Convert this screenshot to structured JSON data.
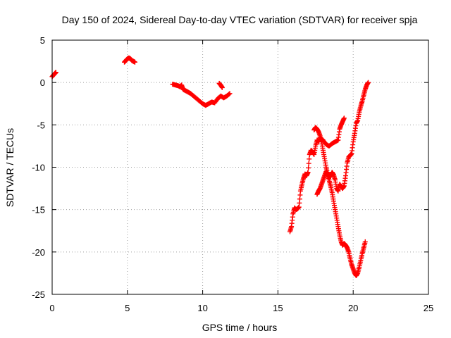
{
  "chart_data": {
    "type": "scatter",
    "title": "Day 150 of 2024, Sidereal Day-to-day VTEC variation (SDTVAR) for receiver spja",
    "xlabel": "GPS time / hours",
    "ylabel": "SDTVAR / TECUs",
    "xlim": [
      0,
      25
    ],
    "ylim": [
      -25,
      5
    ],
    "xticks": [
      "0",
      "5",
      "10",
      "15",
      "20",
      "25"
    ],
    "yticks": [
      "-25",
      "-20",
      "-15",
      "-10",
      "-5",
      "0",
      "5"
    ],
    "grid": true,
    "marker": "plus",
    "color": "#ff0000",
    "series": [
      {
        "segments": [
          [
            [
              0.0,
              0.7
            ],
            [
              0.1,
              0.9
            ],
            [
              0.2,
              1.1
            ],
            [
              0.25,
              1.2
            ]
          ],
          [
            [
              4.8,
              2.4
            ],
            [
              4.9,
              2.6
            ],
            [
              5.0,
              2.8
            ],
            [
              5.1,
              2.9
            ],
            [
              5.2,
              2.8
            ],
            [
              5.3,
              2.6
            ],
            [
              5.4,
              2.5
            ],
            [
              5.5,
              2.4
            ]
          ],
          [
            [
              8.0,
              -0.2
            ],
            [
              8.2,
              -0.3
            ],
            [
              8.4,
              -0.4
            ],
            [
              8.5,
              -0.5
            ],
            [
              8.6,
              -0.3
            ],
            [
              8.7,
              -0.8
            ],
            [
              8.8,
              -0.9
            ],
            [
              9.0,
              -1.1
            ],
            [
              9.2,
              -1.3
            ],
            [
              9.4,
              -1.6
            ],
            [
              9.6,
              -1.9
            ],
            [
              9.8,
              -2.2
            ],
            [
              10.0,
              -2.5
            ],
            [
              10.2,
              -2.7
            ],
            [
              10.4,
              -2.5
            ],
            [
              10.6,
              -2.3
            ],
            [
              10.8,
              -2.4
            ],
            [
              11.0,
              -1.9
            ],
            [
              11.2,
              -1.6
            ],
            [
              11.4,
              -1.8
            ],
            [
              11.6,
              -1.6
            ],
            [
              11.8,
              -1.3
            ]
          ],
          [
            [
              11.1,
              -0.1
            ],
            [
              11.2,
              -0.3
            ],
            [
              11.3,
              -0.6
            ]
          ],
          [
            [
              15.8,
              -17.6
            ],
            [
              15.9,
              -17.0
            ],
            [
              16.0,
              -15.5
            ],
            [
              16.1,
              -14.8
            ],
            [
              16.2,
              -15.0
            ],
            [
              16.3,
              -14.9
            ],
            [
              16.4,
              -14.7
            ],
            [
              16.5,
              -12.8
            ],
            [
              16.6,
              -12.0
            ],
            [
              16.7,
              -11.3
            ],
            [
              16.8,
              -10.8
            ],
            [
              16.9,
              -11.0
            ],
            [
              17.0,
              -10.6
            ],
            [
              17.1,
              -8.5
            ],
            [
              17.2,
              -8.0
            ],
            [
              17.3,
              -8.2
            ],
            [
              17.4,
              -8.5
            ],
            [
              17.5,
              -7.5
            ],
            [
              17.6,
              -6.8
            ],
            [
              17.7,
              -7.0
            ],
            [
              17.8,
              -6.5
            ],
            [
              18.0,
              -6.8
            ],
            [
              18.2,
              -7.3
            ],
            [
              18.4,
              -7.5
            ],
            [
              18.6,
              -7.2
            ],
            [
              18.8,
              -7.0
            ],
            [
              19.0,
              -6.8
            ],
            [
              19.1,
              -5.5
            ],
            [
              19.2,
              -5.0
            ],
            [
              19.3,
              -4.6
            ],
            [
              19.4,
              -4.2
            ]
          ],
          [
            [
              17.4,
              -5.6
            ],
            [
              17.5,
              -5.3
            ],
            [
              17.6,
              -5.5
            ],
            [
              17.7,
              -5.8
            ],
            [
              17.8,
              -6.3
            ],
            [
              17.9,
              -7.0
            ],
            [
              18.0,
              -8.0
            ],
            [
              18.1,
              -9.0
            ],
            [
              18.2,
              -10.0
            ],
            [
              18.3,
              -10.8
            ],
            [
              18.4,
              -11.5
            ],
            [
              18.5,
              -12.2
            ],
            [
              18.6,
              -13.0
            ],
            [
              18.7,
              -14.0
            ],
            [
              18.8,
              -15.0
            ],
            [
              18.9,
              -16.0
            ],
            [
              19.0,
              -17.0
            ],
            [
              19.1,
              -18.0
            ],
            [
              19.2,
              -18.8
            ],
            [
              19.3,
              -19.2
            ],
            [
              19.4,
              -19.0
            ],
            [
              19.5,
              -19.2
            ],
            [
              19.6,
              -19.5
            ],
            [
              19.7,
              -20.0
            ],
            [
              19.8,
              -20.8
            ],
            [
              19.9,
              -21.5
            ],
            [
              20.0,
              -22.0
            ],
            [
              20.1,
              -22.5
            ],
            [
              20.2,
              -22.8
            ],
            [
              20.3,
              -22.5
            ],
            [
              20.4,
              -21.8
            ],
            [
              20.5,
              -21.0
            ],
            [
              20.6,
              -20.2
            ],
            [
              20.7,
              -19.5
            ],
            [
              20.8,
              -18.8
            ]
          ],
          [
            [
              17.6,
              -13.2
            ],
            [
              17.7,
              -12.8
            ],
            [
              17.8,
              -12.5
            ],
            [
              17.9,
              -12.0
            ],
            [
              18.0,
              -11.5
            ],
            [
              18.1,
              -11.0
            ],
            [
              18.2,
              -10.5
            ],
            [
              18.3,
              -10.8
            ],
            [
              18.4,
              -11.2
            ],
            [
              18.5,
              -11.0
            ],
            [
              18.6,
              -10.6
            ],
            [
              18.7,
              -10.9
            ],
            [
              18.8,
              -11.5
            ],
            [
              18.9,
              -12.5
            ],
            [
              19.0,
              -12.8
            ],
            [
              19.1,
              -12.0
            ],
            [
              19.2,
              -12.3
            ],
            [
              19.3,
              -12.5
            ],
            [
              19.4,
              -12.2
            ],
            [
              19.5,
              -11.0
            ],
            [
              19.6,
              -9.5
            ],
            [
              19.7,
              -8.8
            ],
            [
              19.8,
              -8.6
            ],
            [
              19.9,
              -8.4
            ],
            [
              20.0,
              -7.0
            ],
            [
              20.1,
              -6.0
            ],
            [
              20.2,
              -4.8
            ],
            [
              20.3,
              -4.5
            ],
            [
              20.4,
              -3.5
            ],
            [
              20.5,
              -2.8
            ],
            [
              20.6,
              -2.2
            ],
            [
              20.7,
              -1.5
            ],
            [
              20.8,
              -0.8
            ],
            [
              20.9,
              -0.3
            ],
            [
              21.0,
              0.0
            ]
          ]
        ]
      }
    ]
  }
}
